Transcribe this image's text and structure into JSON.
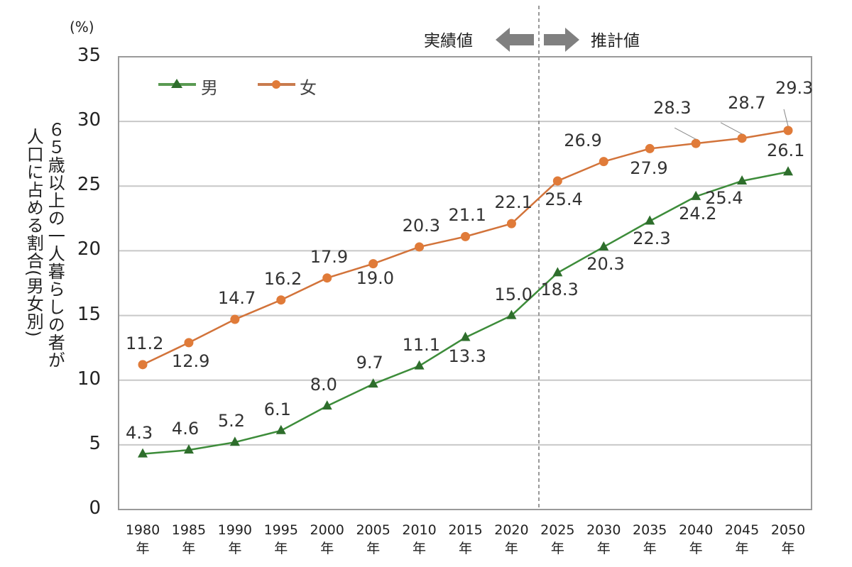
{
  "chart_data": {
    "type": "line",
    "title": "",
    "unit_label": "(%)",
    "ylabel": "６５歳以上の一人暮らしの者が人口に占める割合(男女別)",
    "ylabel_lines": [
      "６５歳以上の一人暮らしの者が",
      "人口に占める割合(男女別)"
    ],
    "xlabel": "",
    "ylim": [
      0,
      35
    ],
    "yticks": [
      0,
      5,
      10,
      15,
      20,
      25,
      30,
      35
    ],
    "grid": true,
    "legend_position": "top-left inside plot",
    "categories": [
      "1980年",
      "1985年",
      "1990年",
      "1995年",
      "2000年",
      "2005年",
      "2010年",
      "2015年",
      "2020年",
      "2025年",
      "2030年",
      "2035年",
      "2040年",
      "2045年",
      "2050年"
    ],
    "x_year_labels": [
      "1980",
      "1985",
      "1990",
      "1995",
      "2000",
      "2005",
      "2010",
      "2015",
      "2020",
      "2025",
      "2030",
      "2035",
      "2040",
      "2045",
      "2050"
    ],
    "x_suffix": "年",
    "series": [
      {
        "name": "男",
        "marker": "triangle",
        "color": "#3d8c3a",
        "marker_color": "#2e6e2c",
        "values": [
          4.3,
          4.6,
          5.2,
          6.1,
          8.0,
          9.7,
          11.1,
          13.3,
          15.0,
          18.3,
          20.3,
          22.3,
          24.2,
          25.4,
          26.1
        ]
      },
      {
        "name": "女",
        "marker": "circle",
        "color": "#d2733a",
        "marker_color": "#e07b39",
        "values": [
          11.2,
          12.9,
          14.7,
          16.2,
          17.9,
          19.0,
          20.3,
          21.1,
          22.1,
          25.4,
          26.9,
          27.9,
          28.3,
          28.7,
          29.3
        ]
      }
    ],
    "annotations": [
      {
        "text": "実績値",
        "direction": "left",
        "applies_to": "1980-2020"
      },
      {
        "text": "推計値",
        "direction": "right",
        "applies_to": "2025-2050"
      },
      {
        "type": "vertical-dashed-line",
        "between": [
          "2020年",
          "2025年"
        ]
      }
    ]
  },
  "ui": {
    "actual_label": "実績値",
    "estimate_label": "推計値",
    "legend_male": "男",
    "legend_female": "女",
    "grid_color": "#c8c8c8",
    "border_color": "#9a9a9a",
    "arrow_color": "#808080"
  }
}
